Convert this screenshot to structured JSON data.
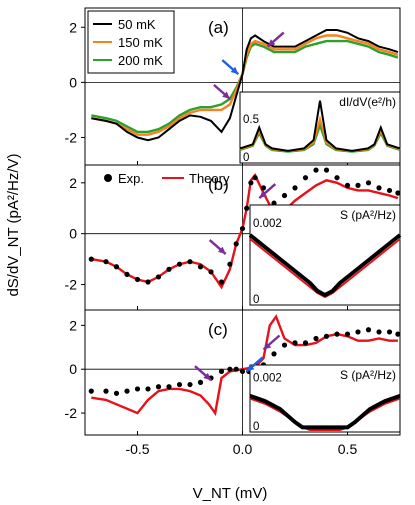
{
  "chart_data": {
    "type": "line",
    "ylabel": "dS/dV_NT (pA²/Hz/V)",
    "xlabel": "V_NT (mV)",
    "xlim": [
      -0.75,
      0.75
    ],
    "x_ticks": [
      -0.5,
      0.0,
      0.5
    ],
    "x_tick_labels": [
      "-0.5",
      "0.0",
      "0.5"
    ],
    "colors": {
      "50 mK": "#000000",
      "150 mK": "#f5821f",
      "200 mK": "#2ea02c",
      "Exp.": "#000000",
      "Theory": "#e8111a",
      "arrow_purple": "#7b2d9a",
      "arrow_blue": "#1f5fe0"
    },
    "panels": [
      {
        "id": "a",
        "label": "(a)",
        "ylim": [
          -3,
          2.7
        ],
        "y_ticks": [
          -2,
          0,
          2
        ],
        "y_tick_labels": [
          "-2",
          "0",
          "2"
        ],
        "legend": [
          "50 mK",
          "150 mK",
          "200 mK"
        ],
        "series": [
          {
            "name": "50 mK",
            "style": "line",
            "x": [
              -0.72,
              -0.65,
              -0.6,
              -0.55,
              -0.5,
              -0.45,
              -0.4,
              -0.35,
              -0.3,
              -0.25,
              -0.2,
              -0.15,
              -0.1,
              -0.06,
              -0.03,
              0.0,
              0.02,
              0.04,
              0.06,
              0.1,
              0.15,
              0.2,
              0.25,
              0.3,
              0.35,
              0.4,
              0.45,
              0.5,
              0.55,
              0.6,
              0.65,
              0.7,
              0.74
            ],
            "y": [
              -1.3,
              -1.4,
              -1.5,
              -1.8,
              -2.0,
              -2.1,
              -2.0,
              -1.7,
              -1.4,
              -1.2,
              -1.25,
              -1.4,
              -1.8,
              -1.3,
              -0.5,
              0.3,
              1.2,
              1.6,
              1.7,
              1.5,
              1.3,
              1.3,
              1.3,
              1.5,
              1.7,
              1.9,
              1.9,
              1.8,
              1.6,
              1.5,
              1.3,
              1.2,
              1.1
            ]
          },
          {
            "name": "150 mK",
            "style": "line",
            "x": [
              -0.72,
              -0.65,
              -0.6,
              -0.55,
              -0.5,
              -0.45,
              -0.4,
              -0.35,
              -0.3,
              -0.25,
              -0.2,
              -0.15,
              -0.1,
              -0.06,
              -0.03,
              0.0,
              0.02,
              0.04,
              0.06,
              0.1,
              0.15,
              0.2,
              0.25,
              0.3,
              0.35,
              0.4,
              0.45,
              0.5,
              0.55,
              0.6,
              0.65,
              0.7,
              0.74
            ],
            "y": [
              -1.3,
              -1.4,
              -1.5,
              -1.7,
              -1.9,
              -1.9,
              -1.8,
              -1.6,
              -1.3,
              -1.1,
              -1.0,
              -1.0,
              -1.0,
              -0.8,
              -0.3,
              0.3,
              1.0,
              1.4,
              1.5,
              1.4,
              1.2,
              1.2,
              1.2,
              1.4,
              1.6,
              1.7,
              1.7,
              1.6,
              1.5,
              1.4,
              1.2,
              1.1,
              1.0
            ]
          },
          {
            "name": "200 mK",
            "style": "line",
            "x": [
              -0.72,
              -0.65,
              -0.6,
              -0.55,
              -0.5,
              -0.45,
              -0.4,
              -0.35,
              -0.3,
              -0.25,
              -0.2,
              -0.15,
              -0.1,
              -0.06,
              -0.03,
              0.0,
              0.02,
              0.04,
              0.06,
              0.1,
              0.15,
              0.2,
              0.25,
              0.3,
              0.35,
              0.4,
              0.45,
              0.5,
              0.55,
              0.6,
              0.65,
              0.7,
              0.74
            ],
            "y": [
              -1.2,
              -1.3,
              -1.4,
              -1.6,
              -1.8,
              -1.8,
              -1.7,
              -1.5,
              -1.2,
              -1.0,
              -0.9,
              -0.9,
              -0.8,
              -0.6,
              -0.2,
              0.3,
              0.9,
              1.3,
              1.4,
              1.3,
              1.1,
              1.1,
              1.1,
              1.3,
              1.4,
              1.5,
              1.5,
              1.5,
              1.4,
              1.3,
              1.1,
              1.0,
              0.9
            ]
          }
        ],
        "inset": {
          "label": "dI/dV(e²/h)",
          "ylim": [
            0,
            0.8
          ],
          "y_ticks": [
            0,
            0.5
          ],
          "y_tick_labels": [
            "0",
            "0.5"
          ],
          "x_range": [
            0,
            1
          ],
          "series": [
            {
              "name": "50 mK",
              "x": [
                0,
                0.08,
                0.12,
                0.16,
                0.2,
                0.3,
                0.4,
                0.46,
                0.5,
                0.54,
                0.6,
                0.7,
                0.8,
                0.84,
                0.88,
                0.92,
                1.0
              ],
              "y": [
                0.15,
                0.2,
                0.4,
                0.2,
                0.15,
                0.12,
                0.15,
                0.25,
                0.72,
                0.25,
                0.15,
                0.12,
                0.15,
                0.2,
                0.4,
                0.2,
                0.15
              ]
            },
            {
              "name": "150 mK",
              "x": [
                0,
                0.08,
                0.12,
                0.16,
                0.2,
                0.3,
                0.4,
                0.46,
                0.5,
                0.54,
                0.6,
                0.7,
                0.8,
                0.84,
                0.88,
                0.92,
                1.0
              ],
              "y": [
                0.14,
                0.19,
                0.36,
                0.19,
                0.14,
                0.12,
                0.14,
                0.22,
                0.5,
                0.22,
                0.14,
                0.12,
                0.14,
                0.19,
                0.36,
                0.19,
                0.14
              ]
            },
            {
              "name": "200 mK",
              "x": [
                0,
                0.08,
                0.12,
                0.16,
                0.2,
                0.3,
                0.4,
                0.46,
                0.5,
                0.54,
                0.6,
                0.7,
                0.8,
                0.84,
                0.88,
                0.92,
                1.0
              ],
              "y": [
                0.13,
                0.18,
                0.33,
                0.18,
                0.13,
                0.11,
                0.13,
                0.2,
                0.42,
                0.2,
                0.13,
                0.11,
                0.13,
                0.18,
                0.33,
                0.18,
                0.13
              ]
            }
          ]
        }
      },
      {
        "id": "b",
        "label": "(b)",
        "ylim": [
          -3,
          2.7
        ],
        "y_ticks": [
          -2,
          0,
          2
        ],
        "y_tick_labels": [
          "-2",
          "0",
          "2"
        ],
        "legend": [
          "Exp.",
          "Theory"
        ],
        "series": [
          {
            "name": "Exp.",
            "style": "dots",
            "x": [
              -0.72,
              -0.65,
              -0.6,
              -0.55,
              -0.5,
              -0.45,
              -0.4,
              -0.35,
              -0.3,
              -0.25,
              -0.2,
              -0.15,
              -0.1,
              -0.06,
              -0.03,
              0.0,
              0.02,
              0.04,
              0.06,
              0.1,
              0.15,
              0.2,
              0.25,
              0.3,
              0.35,
              0.4,
              0.45,
              0.5,
              0.55,
              0.6,
              0.65,
              0.7,
              0.74
            ],
            "y": [
              -1.0,
              -1.1,
              -1.3,
              -1.6,
              -1.8,
              -1.9,
              -1.7,
              -1.4,
              -1.2,
              -1.1,
              -1.3,
              -1.5,
              -1.9,
              -1.2,
              -0.4,
              0.2,
              1.0,
              2.0,
              2.2,
              1.8,
              1.2,
              1.5,
              1.8,
              2.2,
              2.5,
              2.5,
              2.2,
              1.9,
              1.9,
              2.0,
              1.8,
              1.7,
              1.6
            ]
          },
          {
            "name": "Theory",
            "style": "line",
            "x": [
              -0.72,
              -0.65,
              -0.6,
              -0.55,
              -0.5,
              -0.45,
              -0.4,
              -0.35,
              -0.3,
              -0.25,
              -0.2,
              -0.15,
              -0.1,
              -0.06,
              -0.03,
              0.0,
              0.02,
              0.04,
              0.06,
              0.1,
              0.15,
              0.2,
              0.25,
              0.3,
              0.35,
              0.4,
              0.45,
              0.5,
              0.55,
              0.6,
              0.65,
              0.7,
              0.74
            ],
            "y": [
              -1.0,
              -1.1,
              -1.3,
              -1.6,
              -1.8,
              -1.9,
              -1.7,
              -1.4,
              -1.2,
              -1.1,
              -1.2,
              -1.5,
              -2.1,
              -1.4,
              -0.4,
              0.2,
              1.0,
              2.1,
              2.3,
              1.6,
              0.8,
              0.9,
              1.3,
              1.6,
              1.9,
              2.1,
              2.0,
              1.8,
              1.7,
              1.7,
              1.6,
              1.5,
              1.4
            ]
          }
        ],
        "inset": {
          "label": "S (pA²/Hz)",
          "ylim": [
            0,
            0.0024
          ],
          "y_ticks": [
            0,
            0.002
          ],
          "y_tick_labels": [
            "0",
            "0.002"
          ],
          "x_range": [
            0,
            1
          ],
          "series": [
            {
              "name": "Exp.",
              "x": [
                0,
                0.1,
                0.2,
                0.3,
                0.4,
                0.45,
                0.5,
                0.55,
                0.6,
                0.7,
                0.8,
                0.9,
                1.0
              ],
              "y": [
                0.0017,
                0.0014,
                0.0011,
                0.0008,
                0.0005,
                0.0003,
                0.0002,
                0.0003,
                0.0005,
                0.0008,
                0.0011,
                0.0014,
                0.0017
              ]
            },
            {
              "name": "Theory",
              "x": [
                0,
                0.1,
                0.2,
                0.3,
                0.4,
                0.45,
                0.5,
                0.55,
                0.6,
                0.7,
                0.8,
                0.9,
                1.0
              ],
              "y": [
                0.0016,
                0.0013,
                0.001,
                0.0007,
                0.0004,
                0.00025,
                0.00015,
                0.00025,
                0.0004,
                0.0007,
                0.001,
                0.0013,
                0.0016
              ]
            }
          ]
        }
      },
      {
        "id": "c",
        "label": "(c)",
        "ylim": [
          -3,
          2.7
        ],
        "y_ticks": [
          -2,
          0,
          2
        ],
        "y_tick_labels": [
          "-2",
          "0",
          "2"
        ],
        "series": [
          {
            "name": "Exp.",
            "style": "dots",
            "x": [
              -0.72,
              -0.65,
              -0.6,
              -0.55,
              -0.5,
              -0.45,
              -0.4,
              -0.35,
              -0.3,
              -0.25,
              -0.2,
              -0.15,
              -0.1,
              -0.06,
              -0.03,
              0.0,
              0.03,
              0.06,
              0.1,
              0.15,
              0.2,
              0.25,
              0.3,
              0.35,
              0.4,
              0.45,
              0.5,
              0.55,
              0.6,
              0.65,
              0.7,
              0.74
            ],
            "y": [
              -1.0,
              -1.0,
              -1.1,
              -1.0,
              -0.9,
              -0.9,
              -0.8,
              -0.8,
              -0.7,
              -0.7,
              -0.6,
              -0.4,
              -0.1,
              0.0,
              0.0,
              -0.1,
              -0.1,
              -0.1,
              0.2,
              0.7,
              1.1,
              1.2,
              1.2,
              1.4,
              1.5,
              1.6,
              1.6,
              1.7,
              1.8,
              1.7,
              1.7,
              1.6
            ]
          },
          {
            "name": "Theory",
            "style": "line",
            "x": [
              -0.72,
              -0.65,
              -0.6,
              -0.55,
              -0.5,
              -0.45,
              -0.4,
              -0.35,
              -0.3,
              -0.25,
              -0.2,
              -0.16,
              -0.13,
              -0.1,
              -0.06,
              0.0,
              0.06,
              0.1,
              0.13,
              0.16,
              0.2,
              0.25,
              0.3,
              0.35,
              0.4,
              0.45,
              0.5,
              0.55,
              0.6,
              0.65,
              0.7,
              0.74
            ],
            "y": [
              -1.3,
              -1.4,
              -1.6,
              -1.8,
              -2.0,
              -1.4,
              -1.0,
              -0.9,
              -0.9,
              -1.0,
              -1.2,
              -1.6,
              -2.0,
              -0.4,
              -0.1,
              0.0,
              0.1,
              0.5,
              2.0,
              2.4,
              1.4,
              1.1,
              1.1,
              1.2,
              1.5,
              1.6,
              1.5,
              1.3,
              1.3,
              1.4,
              1.3,
              1.3
            ]
          }
        ],
        "inset": {
          "label": "S (pA²/Hz)",
          "ylim": [
            0,
            0.0024
          ],
          "y_ticks": [
            0,
            0.002
          ],
          "y_tick_labels": [
            "0",
            "0.002"
          ],
          "x_range": [
            0,
            1
          ],
          "series": [
            {
              "name": "Exp.",
              "x": [
                0,
                0.1,
                0.2,
                0.3,
                0.35,
                0.4,
                0.5,
                0.6,
                0.65,
                0.7,
                0.8,
                0.9,
                1.0
              ],
              "y": [
                0.0013,
                0.0011,
                0.0008,
                0.0003,
                0.0001,
                0.0001,
                0.0001,
                0.0001,
                0.0001,
                0.0003,
                0.0008,
                0.0011,
                0.0013
              ]
            },
            {
              "name": "Theory",
              "x": [
                0,
                0.1,
                0.2,
                0.3,
                0.35,
                0.4,
                0.5,
                0.6,
                0.65,
                0.7,
                0.8,
                0.9,
                1.0
              ],
              "y": [
                0.0012,
                0.001,
                0.0007,
                0.0003,
                0.0001,
                0.0,
                0.0,
                0.0,
                0.0001,
                0.0003,
                0.0007,
                0.001,
                0.0012
              ]
            }
          ]
        }
      }
    ],
    "annotations": [
      {
        "panel": "a",
        "type": "arrow",
        "color": "blue",
        "x": -0.02,
        "y": 0.3
      },
      {
        "panel": "a",
        "type": "arrow",
        "color": "purple",
        "x": -0.06,
        "y": -0.6
      },
      {
        "panel": "a",
        "type": "arrow",
        "color": "purple",
        "x": 0.12,
        "y": 1.3
      },
      {
        "panel": "b",
        "type": "arrow",
        "color": "purple",
        "x": -0.08,
        "y": -0.8
      },
      {
        "panel": "b",
        "type": "arrow",
        "color": "purple",
        "x": 0.08,
        "y": 1.4
      },
      {
        "panel": "c",
        "type": "arrow",
        "color": "purple",
        "x": -0.15,
        "y": -0.5
      },
      {
        "panel": "c",
        "type": "arrow",
        "color": "purple",
        "x": 0.1,
        "y": 0.9
      },
      {
        "panel": "c",
        "type": "arrow",
        "color": "blue",
        "x": 0.02,
        "y": -0.1
      }
    ]
  }
}
